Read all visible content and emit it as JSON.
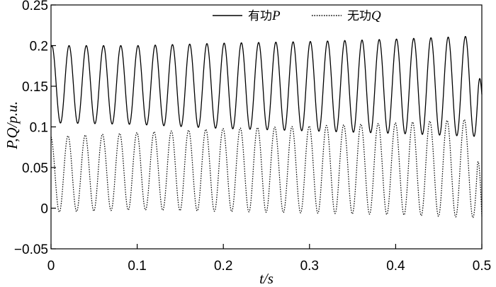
{
  "chart_data": {
    "type": "line",
    "xlabel": "t/s",
    "ylabel": "P,Q/p.u.",
    "xlim": [
      0,
      0.5
    ],
    "ylim": [
      -0.05,
      0.25
    ],
    "x_ticks": [
      "0",
      "0.1",
      "0.2",
      "0.3",
      "0.4",
      "0.5"
    ],
    "x_tick_values": [
      0,
      0.1,
      0.2,
      0.3,
      0.4,
      0.5
    ],
    "y_ticks": [
      "−0.05",
      "0",
      "0.05",
      "0.1",
      "0.15",
      "0.2",
      "0.25"
    ],
    "y_tick_values": [
      -0.05,
      0,
      0.05,
      0.1,
      0.15,
      0.2,
      0.25
    ],
    "grid": false,
    "legend_position": "top-right",
    "oscillation_frequency_hz": 50,
    "series": [
      {
        "name_prefix": "有功",
        "name_var": "P",
        "style": "solid",
        "color": "#000000",
        "envelope_points": [
          {
            "t": 0.0,
            "max": 0.2,
            "min": 0.105
          },
          {
            "t": 0.1,
            "max": 0.2,
            "min": 0.103
          },
          {
            "t": 0.2,
            "max": 0.203,
            "min": 0.098
          },
          {
            "t": 0.3,
            "max": 0.205,
            "min": 0.095
          },
          {
            "t": 0.4,
            "max": 0.208,
            "min": 0.092
          },
          {
            "t": 0.5,
            "max": 0.212,
            "min": 0.088
          }
        ],
        "end_value": 0.14
      },
      {
        "name_prefix": "无功",
        "name_var": "Q",
        "style": "dotted",
        "color": "#000000",
        "envelope_points": [
          {
            "t": 0.0,
            "max": 0.088,
            "min": -0.005
          },
          {
            "t": 0.1,
            "max": 0.093,
            "min": -0.002
          },
          {
            "t": 0.2,
            "max": 0.098,
            "min": -0.004
          },
          {
            "t": 0.3,
            "max": 0.101,
            "min": -0.006
          },
          {
            "t": 0.4,
            "max": 0.105,
            "min": -0.008
          },
          {
            "t": 0.5,
            "max": 0.11,
            "min": -0.012
          }
        ],
        "end_value": -0.01
      }
    ]
  }
}
